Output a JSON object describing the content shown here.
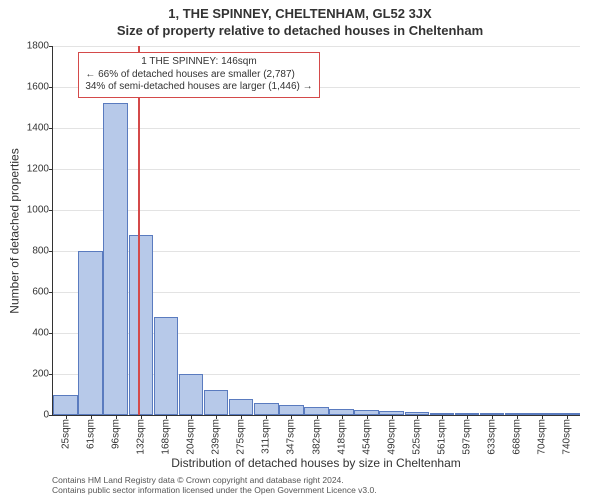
{
  "title_top": "1, THE SPINNEY, CHELTENHAM, GL52 3JX",
  "title_sub": "Size of property relative to detached houses in Cheltenham",
  "chart": {
    "type": "histogram",
    "ylabel": "Number of detached properties",
    "xlabel": "Distribution of detached houses by size in Cheltenham",
    "ylim_max": 1800,
    "ytick_step": 200,
    "y_ticks": [
      0,
      200,
      400,
      600,
      800,
      1000,
      1200,
      1400,
      1600,
      1800
    ],
    "x_labels": [
      "25sqm",
      "61sqm",
      "96sqm",
      "132sqm",
      "168sqm",
      "204sqm",
      "239sqm",
      "275sqm",
      "311sqm",
      "347sqm",
      "382sqm",
      "418sqm",
      "454sqm",
      "490sqm",
      "525sqm",
      "561sqm",
      "597sqm",
      "633sqm",
      "668sqm",
      "704sqm",
      "740sqm"
    ],
    "bar_values": [
      100,
      800,
      1520,
      880,
      480,
      200,
      120,
      80,
      60,
      50,
      40,
      30,
      25,
      20,
      15,
      12,
      10,
      8,
      6,
      5,
      3
    ],
    "bar_color": "#b7c9e9",
    "bar_border_color": "#5a7bbf",
    "grid_color": "#e3e3e3",
    "axis_color": "#333333",
    "marker": {
      "index_between": 3,
      "fraction": 0.4,
      "color": "#d44a4a"
    },
    "info_box": {
      "line1": "1 THE SPINNEY: 146sqm",
      "line2": "← 66% of detached houses are smaller (2,787)",
      "line3": "34% of semi-detached houses are larger (1,446) →",
      "border_color": "#d44a4a"
    }
  },
  "attrib": {
    "line1": "Contains HM Land Registry data © Crown copyright and database right 2024.",
    "line2": "Contains public sector information licensed under the Open Government Licence v3.0."
  }
}
